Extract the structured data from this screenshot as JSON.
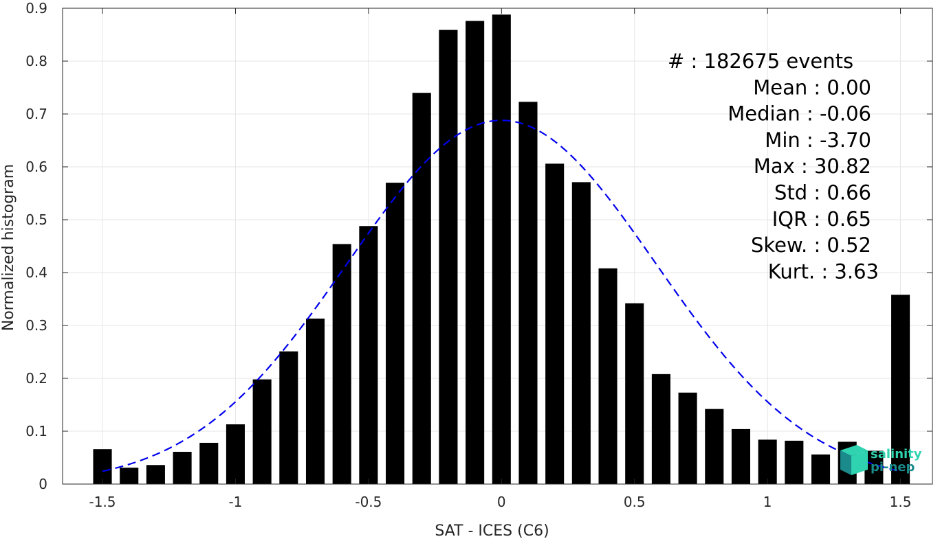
{
  "chart_data": {
    "type": "bar",
    "xlabel": "SAT - ICES (C6)",
    "ylabel": "Normalized histogram",
    "xlim": [
      -1.65,
      1.62
    ],
    "ylim": [
      0,
      0.9
    ],
    "grid": true,
    "x_ticks": [
      -1.5,
      -1,
      -0.5,
      0,
      0.5,
      1,
      1.5
    ],
    "x_tick_labels": [
      "-1.5",
      "-1",
      "-0.5",
      "0",
      "0.5",
      "1",
      "1.5"
    ],
    "y_ticks": [
      0,
      0.1,
      0.2,
      0.3,
      0.4,
      0.5,
      0.6,
      0.7,
      0.8,
      0.9
    ],
    "y_tick_labels": [
      "0",
      "0.1",
      "0.2",
      "0.3",
      "0.4",
      "0.5",
      "0.6",
      "0.7",
      "0.8",
      "0.9"
    ],
    "bar_width": 0.07,
    "x": [
      -1.5,
      -1.4,
      -1.3,
      -1.2,
      -1.1,
      -1.0,
      -0.9,
      -0.8,
      -0.7,
      -0.6,
      -0.5,
      -0.4,
      -0.3,
      -0.2,
      -0.1,
      0.0,
      0.1,
      0.2,
      0.3,
      0.4,
      0.5,
      0.6,
      0.7,
      0.8,
      0.9,
      1.0,
      1.1,
      1.2,
      1.3,
      1.4,
      1.5
    ],
    "values": [
      0.066,
      0.031,
      0.036,
      0.061,
      0.078,
      0.113,
      0.198,
      0.251,
      0.313,
      0.454,
      0.488,
      0.57,
      0.74,
      0.859,
      0.876,
      0.888,
      0.723,
      0.606,
      0.571,
      0.408,
      0.342,
      0.208,
      0.173,
      0.142,
      0.104,
      0.084,
      0.082,
      0.056,
      0.08,
      0.063,
      0.358
    ],
    "bar_color": "#000000",
    "fit_curve": {
      "style": "dashed",
      "color": "#0000ee",
      "mean": 0.0,
      "std": 0.58,
      "peak": 0.688,
      "x_range": [
        -1.5,
        1.5
      ]
    },
    "stats": [
      {
        "label": "#  : 182675 events"
      },
      {
        "label": "Mean : 0.00"
      },
      {
        "label": "Median : -0.06"
      },
      {
        "label": "Min : -3.70"
      },
      {
        "label": "Max : 30.82"
      },
      {
        "label": "Std : 0.66"
      },
      {
        "label": "IQR : 0.65"
      },
      {
        "label": "Skew. : 0.52"
      },
      {
        "label": "Kurt. : 3.63"
      }
    ]
  },
  "logo": {
    "line1": "salinity",
    "line2": "pi-nep",
    "color_light": "#2fd3b0",
    "color_dark": "#1a8a8a"
  }
}
